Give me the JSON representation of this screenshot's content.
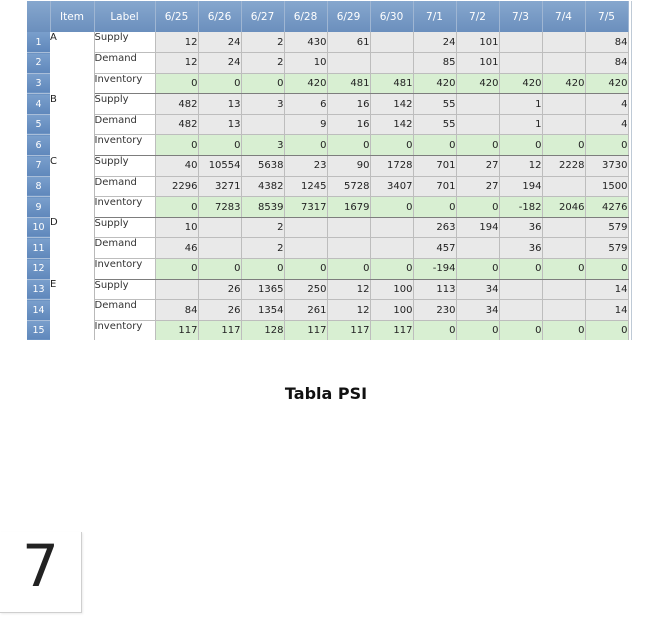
{
  "grid": {
    "headers": {
      "item": "Item",
      "label": "Label",
      "dates": [
        "6/25",
        "6/26",
        "6/27",
        "6/28",
        "6/29",
        "6/30",
        "7/1",
        "7/2",
        "7/3",
        "7/4",
        "7/5"
      ]
    },
    "groups": [
      {
        "item": "A",
        "rows": [
          {
            "num": "1",
            "label": "Supply",
            "values": [
              "12",
              "24",
              "2",
              "430",
              "61",
              "",
              "24",
              "101",
              "",
              "",
              "84"
            ]
          },
          {
            "num": "2",
            "label": "Demand",
            "values": [
              "12",
              "24",
              "2",
              "10",
              "",
              "",
              "85",
              "101",
              "",
              "",
              "84"
            ]
          },
          {
            "num": "3",
            "label": "Inventory",
            "values": [
              "0",
              "0",
              "0",
              "420",
              "481",
              "481",
              "420",
              "420",
              "420",
              "420",
              "420"
            ]
          }
        ]
      },
      {
        "item": "B",
        "rows": [
          {
            "num": "4",
            "label": "Supply",
            "values": [
              "482",
              "13",
              "3",
              "6",
              "16",
              "142",
              "55",
              "",
              "1",
              "",
              "4"
            ]
          },
          {
            "num": "5",
            "label": "Demand",
            "values": [
              "482",
              "13",
              "",
              "9",
              "16",
              "142",
              "55",
              "",
              "1",
              "",
              "4"
            ]
          },
          {
            "num": "6",
            "label": "Inventory",
            "values": [
              "0",
              "0",
              "3",
              "0",
              "0",
              "0",
              "0",
              "0",
              "0",
              "0",
              "0"
            ]
          }
        ]
      },
      {
        "item": "C",
        "rows": [
          {
            "num": "7",
            "label": "Supply",
            "values": [
              "40",
              "10554",
              "5638",
              "23",
              "90",
              "1728",
              "701",
              "27",
              "12",
              "2228",
              "3730"
            ]
          },
          {
            "num": "8",
            "label": "Demand",
            "values": [
              "2296",
              "3271",
              "4382",
              "1245",
              "5728",
              "3407",
              "701",
              "27",
              "194",
              "",
              "1500"
            ]
          },
          {
            "num": "9",
            "label": "Inventory",
            "values": [
              "0",
              "7283",
              "8539",
              "7317",
              "1679",
              "0",
              "0",
              "0",
              "-182",
              "2046",
              "4276"
            ]
          }
        ]
      },
      {
        "item": "D",
        "rows": [
          {
            "num": "10",
            "label": "Supply",
            "values": [
              "10",
              "",
              "2",
              "",
              "",
              "",
              "263",
              "194",
              "36",
              "",
              "579"
            ]
          },
          {
            "num": "11",
            "label": "Demand",
            "values": [
              "46",
              "",
              "2",
              "",
              "",
              "",
              "457",
              "",
              "36",
              "",
              "579"
            ]
          },
          {
            "num": "12",
            "label": "Inventory",
            "values": [
              "0",
              "0",
              "0",
              "0",
              "0",
              "0",
              "-194",
              "0",
              "0",
              "0",
              "0"
            ]
          }
        ]
      },
      {
        "item": "E",
        "rows": [
          {
            "num": "13",
            "label": "Supply",
            "values": [
              "",
              "26",
              "1365",
              "250",
              "12",
              "100",
              "113",
              "34",
              "",
              "",
              "14"
            ]
          },
          {
            "num": "14",
            "label": "Demand",
            "values": [
              "84",
              "26",
              "1354",
              "261",
              "12",
              "100",
              "230",
              "34",
              "",
              "",
              "14"
            ]
          },
          {
            "num": "15",
            "label": "Inventory",
            "values": [
              "117",
              "117",
              "128",
              "117",
              "117",
              "117",
              "0",
              "0",
              "0",
              "0",
              "0"
            ]
          }
        ]
      }
    ]
  },
  "caption": "Tabla PSI",
  "page_number": "7",
  "colors": {
    "header": "#6b8fbd",
    "cell": "#e9e9e9",
    "inventory": "#d8efd2",
    "negative": "#f2cfd3"
  }
}
